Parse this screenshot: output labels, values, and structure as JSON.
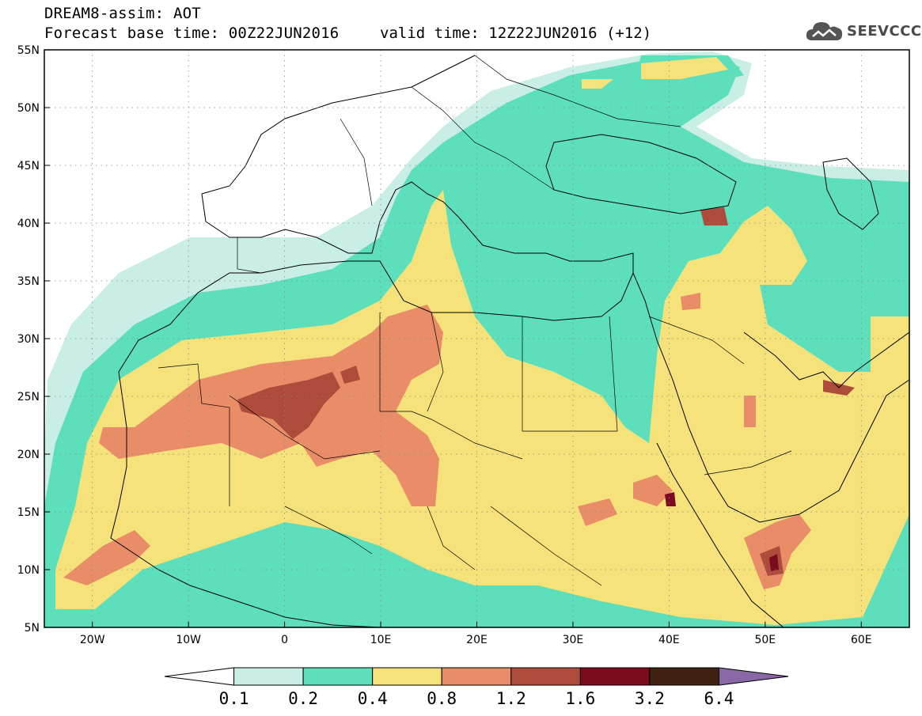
{
  "header": {
    "title": "DREAM8-assim: AOT",
    "base_time": "Forecast base time: 00Z22JUN2016",
    "valid_time": "valid time: 12Z22JUN2016 (+12)",
    "logo_text": "SEEVCCC"
  },
  "map": {
    "lon_range": [
      -25,
      65
    ],
    "lat_range": [
      5,
      55
    ],
    "lat_ticks": [
      "55N",
      "50N",
      "45N",
      "40N",
      "35N",
      "30N",
      "25N",
      "20N",
      "15N",
      "10N",
      "5N"
    ],
    "lat_tick_values": [
      55,
      50,
      45,
      40,
      35,
      30,
      25,
      20,
      15,
      10,
      5
    ],
    "lon_ticks": [
      "20W",
      "10W",
      "0",
      "10E",
      "20E",
      "30E",
      "40E",
      "50E",
      "60E"
    ],
    "lon_tick_values": [
      -20,
      -10,
      0,
      10,
      20,
      30,
      40,
      50,
      60
    ],
    "grid": true
  },
  "colorbar": {
    "levels": [
      "0.1",
      "0.2",
      "0.4",
      "0.8",
      "1.2",
      "1.6",
      "3.2",
      "6.4"
    ],
    "colors": [
      "#ffffff",
      "#c9eee6",
      "#5ddfbb",
      "#f5e27a",
      "#e98d68",
      "#ae4c3c",
      "#7b0c20",
      "#3f2212",
      "#8a67a6"
    ]
  }
}
